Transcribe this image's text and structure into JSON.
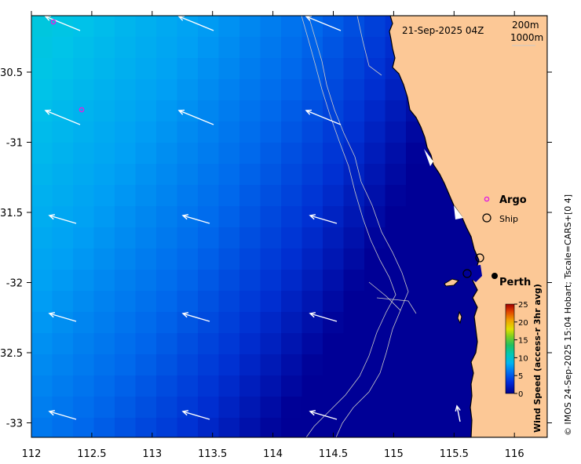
{
  "map": {
    "timestamp": "21-Sep-2025 04Z",
    "depth_contours": [
      "200m",
      "1000m"
    ],
    "credit": "© IMOS 24-Sep-2025 15:04 Hobart; Tscale=CARS+[0 4]",
    "x_ticks": [
      "112",
      "112.5",
      "113",
      "113.5",
      "114",
      "114.5",
      "115",
      "115.5",
      "116"
    ],
    "y_ticks": [
      "-30.5",
      "-31",
      "-31.5",
      "-32",
      "-32.5",
      "-33"
    ],
    "legend": {
      "argo": "Argo",
      "ship": "Ship"
    },
    "places": {
      "perth": "Perth"
    },
    "colorbar": {
      "title": "Wind Speed (access-r 3hr avg)",
      "ticks": [
        "0",
        "5",
        "10",
        "15",
        "20",
        "25"
      ],
      "range": [
        0,
        25
      ]
    }
  },
  "colors": {
    "land": "#fcc896",
    "coast": "#000000",
    "contour": "#c8c8c8",
    "argo": "#e020e0",
    "arrow": "#ffffff"
  },
  "chart_data": {
    "type": "heatmap",
    "field": "wind speed",
    "x_range": [
      112,
      116.3
    ],
    "y_range": [
      -33.12,
      -30.1
    ],
    "colorbar_range": [
      0,
      25
    ]
  }
}
